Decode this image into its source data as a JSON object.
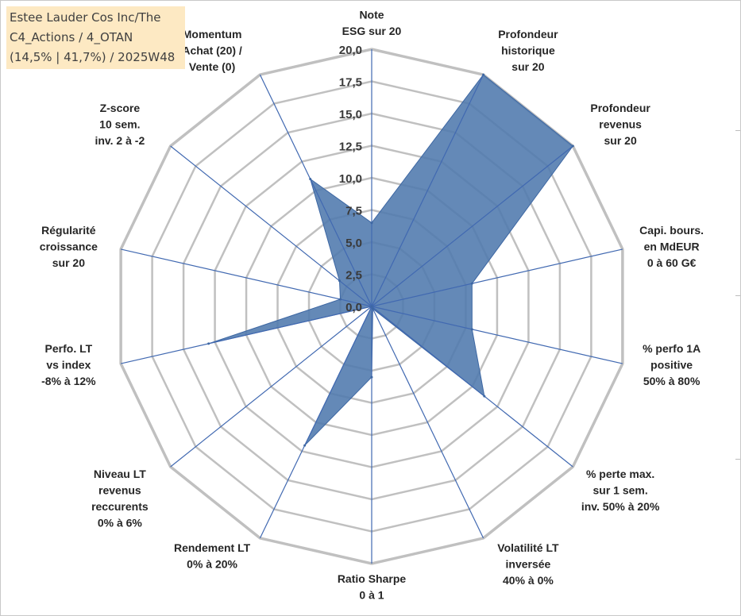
{
  "title": {
    "line1": "Estee Lauder Cos Inc/The",
    "line2": "C4_Actions / 4_OTAN",
    "line3": "(14,5% | 41,7%) / 2025W48"
  },
  "colors": {
    "fill": "#4f79ad",
    "stroke": "#3d67a3",
    "grid": "#c0c0c0",
    "spoke": "#4169b1",
    "title_bg": "#fde9c3"
  },
  "chart_data": {
    "type": "radar",
    "title": "Estee Lauder Cos Inc/The",
    "rlim": [
      0,
      20
    ],
    "rticks": [
      "0,0",
      "2,5",
      "5,0",
      "7,5",
      "10,0",
      "12,5",
      "15,0",
      "17,5",
      "20,0"
    ],
    "axes": [
      {
        "label": [
          "Note",
          "ESG sur 20"
        ]
      },
      {
        "label": [
          "Profondeur",
          "historique",
          "sur 20"
        ]
      },
      {
        "label": [
          "Profondeur",
          "revenus",
          "sur 20"
        ]
      },
      {
        "label": [
          "Capi. bours.",
          "en MdEUR",
          "0 à 60 G€"
        ]
      },
      {
        "label": [
          "% perfo 1A",
          "positive",
          "50% à 80%"
        ]
      },
      {
        "label": [
          "% perte max.",
          "sur 1 sem.",
          "inv. 50% à 20%"
        ]
      },
      {
        "label": [
          "Volatilité LT",
          "inversée",
          "40% à 0%"
        ]
      },
      {
        "label": [
          "Ratio Sharpe",
          "0 à 1"
        ]
      },
      {
        "label": [
          "Rendement LT",
          "0% à 20%"
        ]
      },
      {
        "label": [
          "Niveau LT",
          "revenus",
          "reccurents",
          "0% à 6%"
        ]
      },
      {
        "label": [
          "Perfo. LT",
          "vs index",
          "-8% à 12%"
        ]
      },
      {
        "label": [
          "Régularité",
          "croissance",
          "sur 20"
        ]
      },
      {
        "label": [
          "Z-score",
          "10 sem.",
          "inv. 2 à -2"
        ]
      },
      {
        "label": [
          "Momentum",
          "Achat (20) /",
          "Vente (0)"
        ]
      }
    ],
    "series": [
      {
        "name": "Estee Lauder Cos Inc/The",
        "values": [
          6.5,
          20.0,
          20.0,
          8.0,
          8.0,
          11.2,
          0.2,
          5.5,
          12.0,
          0.0,
          13.0,
          2.5,
          3.2,
          11.0
        ]
      }
    ]
  }
}
